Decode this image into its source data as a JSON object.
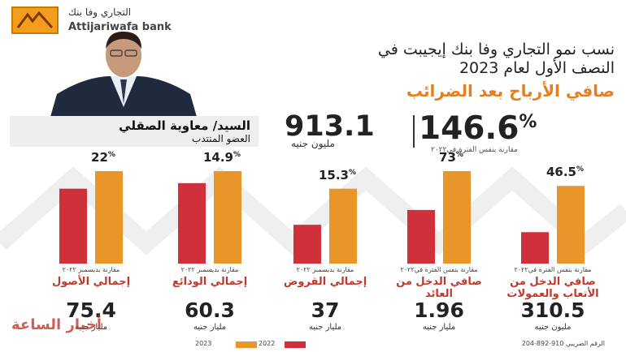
{
  "brand": {
    "arabic_name": "التجاري وفا بنك",
    "latin_name": "Attijariwafa bank",
    "accent_color": "#f39c1e"
  },
  "person": {
    "name": "السيد/ معاوية الصقلي",
    "title": "العضو المنتدب"
  },
  "headline": {
    "line1": "نسب نمو التجاري وفا بنك إيجيبت في",
    "line2": "النصف الأول لعام 2023",
    "subtitle": "صافي الأرباح بعد الضرائب"
  },
  "net_profit": {
    "growth_pct": "146.6",
    "pct_sign": "%",
    "growth_note": "مقارنة بنفس الفترة في٢٠٢٢",
    "value": "913.1",
    "unit": "مليون جنيه"
  },
  "chart_data": {
    "type": "bar",
    "colors": {
      "2022": "#d0303a",
      "2023": "#e8962a"
    },
    "series_names": [
      "2022",
      "2023"
    ],
    "groups": [
      {
        "category": "صافي الدخل من الأتعاب والعمولات",
        "growth": "46.5",
        "note": "مقارنة بنفس الفترة في٢٠٢٢",
        "value_2023": "310.5",
        "unit": "مليون جنيه",
        "relative_heights": {
          "2022": 0.34,
          "2023": 0.84
        }
      },
      {
        "category": "صافي الدخل من العائد",
        "growth": "73",
        "note": "مقارنة بنفس الفترة في٢٠٢٢",
        "value_2023": "1.96",
        "unit": "مليار جنيه",
        "relative_heights": {
          "2022": 0.58,
          "2023": 1.0
        }
      },
      {
        "category": "إجمالي القروض",
        "growth": "15.3",
        "note": "مقارنة بديسمبر ٢٠٢٢",
        "value_2023": "37",
        "unit": "مليار جنيه",
        "relative_heights": {
          "2022": 0.42,
          "2023": 0.81
        }
      },
      {
        "category": "إجمالي الودائع",
        "growth": "14.9",
        "note": "مقارنة بديسمبر ٢٠٢٢",
        "value_2023": "60.3",
        "unit": "مليار جنيه",
        "relative_heights": {
          "2022": 0.87,
          "2023": 1.0
        }
      },
      {
        "category": "إجمالي الأصول",
        "growth": "22",
        "note": "مقارنة بديسمبر ٢٠٢٢",
        "value_2023": "75.4",
        "unit": "مليار جنيه",
        "relative_heights": {
          "2022": 0.81,
          "2023": 1.0
        }
      }
    ]
  },
  "legend": {
    "label_2023": "2023",
    "label_2022": "2022"
  },
  "footer": {
    "tax_id": "الرقم الضريبي 910-892-204"
  },
  "watermark": "أخبار الساعة"
}
